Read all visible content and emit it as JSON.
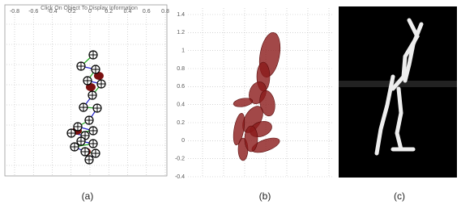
{
  "panels": [
    {
      "caption": "(a)",
      "title": "Click On Object To Display Information",
      "xticks": [
        "-0.8",
        "-0.6",
        "-0.4",
        "-0.2",
        "0",
        "0.2",
        "0.4",
        "0.6",
        "0.8"
      ]
    },
    {
      "caption": "(b)",
      "yticks": [
        "1.4",
        "1.2",
        "1",
        "0.8",
        "0.6",
        "0.4",
        "0.2",
        "0",
        "-0.2",
        "-0.4"
      ]
    },
    {
      "caption": "(c)"
    }
  ]
}
